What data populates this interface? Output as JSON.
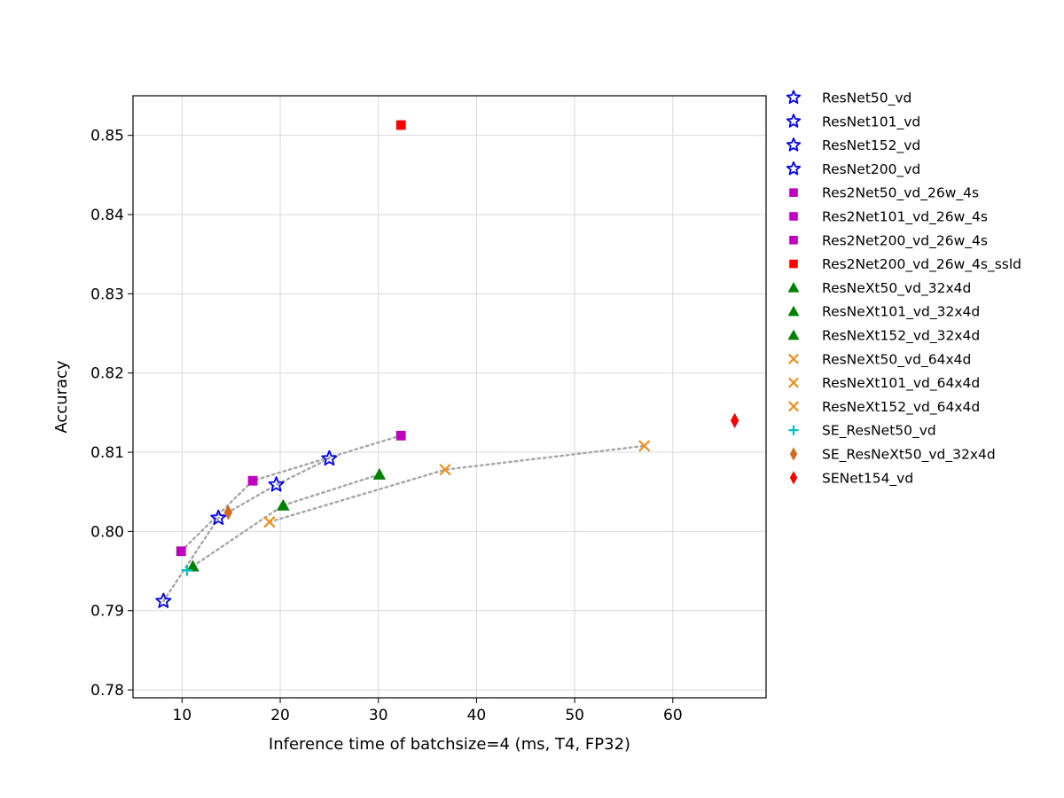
{
  "chart_data": {
    "type": "scatter",
    "xlabel": "Inference time of batchsize=4 (ms, T4, FP32)",
    "ylabel": "Accuracy",
    "xlim": [
      5,
      69.5
    ],
    "ylim": [
      0.779,
      0.855
    ],
    "xticks": [
      10,
      20,
      30,
      40,
      50,
      60
    ],
    "yticks": [
      0.78,
      0.79,
      0.8,
      0.81,
      0.82,
      0.83,
      0.84,
      0.85
    ],
    "grid": true,
    "legend_position": "outside-right",
    "series": [
      {
        "name": "ResNet50_vd",
        "marker": "star",
        "color": "#0000ff",
        "x": 25.0,
        "y": 0.8092
      },
      {
        "name": "ResNet101_vd",
        "marker": "star",
        "color": "#0000ff",
        "x": 19.6,
        "y": 0.8059
      },
      {
        "name": "ResNet152_vd",
        "marker": "star",
        "color": "#0000ff",
        "x": 13.7,
        "y": 0.8017
      },
      {
        "name": "ResNet200_vd",
        "marker": "star",
        "color": "#0000ff",
        "x": 8.1,
        "y": 0.7912
      },
      {
        "name": "Res2Net50_vd_26w_4s",
        "marker": "square",
        "color": "#bf00bf",
        "x": 9.9,
        "y": 0.7975
      },
      {
        "name": "Res2Net101_vd_26w_4s",
        "marker": "square",
        "color": "#bf00bf",
        "x": 17.2,
        "y": 0.8064
      },
      {
        "name": "Res2Net200_vd_26w_4s",
        "marker": "square",
        "color": "#bf00bf",
        "x": 32.3,
        "y": 0.8121
      },
      {
        "name": "Res2Net200_vd_26w_4s_ssld",
        "marker": "square",
        "color": "#ff0000",
        "x": 32.3,
        "y": 0.8513
      },
      {
        "name": "ResNeXt50_vd_32x4d",
        "marker": "triangle",
        "color": "#008000",
        "x": 11.1,
        "y": 0.7956
      },
      {
        "name": "ResNeXt101_vd_32x4d",
        "marker": "triangle",
        "color": "#008000",
        "x": 20.3,
        "y": 0.8033
      },
      {
        "name": "ResNeXt152_vd_32x4d",
        "marker": "triangle",
        "color": "#008000",
        "x": 30.1,
        "y": 0.8072
      },
      {
        "name": "ResNeXt50_vd_64x4d",
        "marker": "x",
        "color": "#f28e1c",
        "x": 18.9,
        "y": 0.8012
      },
      {
        "name": "ResNeXt101_vd_64x4d",
        "marker": "x",
        "color": "#f28e1c",
        "x": 36.8,
        "y": 0.8078
      },
      {
        "name": "ResNeXt152_vd_64x4d",
        "marker": "x",
        "color": "#f28e1c",
        "x": 57.1,
        "y": 0.8108
      },
      {
        "name": "SE_ResNet50_vd",
        "marker": "plus",
        "color": "#00bfbf",
        "x": 10.5,
        "y": 0.7951
      },
      {
        "name": "SE_ResNeXt50_vd_32x4d",
        "marker": "diamond",
        "color": "#d2691e",
        "x": 14.7,
        "y": 0.8024
      },
      {
        "name": "SENet154_vd",
        "marker": "diamond",
        "color": "#ff0000",
        "x": 66.3,
        "y": 0.814
      }
    ],
    "dotted_lines": [
      {
        "family": "ResNet_vd",
        "points": [
          [
            8.1,
            0.7912
          ],
          [
            13.7,
            0.8017
          ],
          [
            19.6,
            0.8059
          ],
          [
            25.0,
            0.8092
          ]
        ]
      },
      {
        "family": "Res2Net_vd_26w_4s",
        "points": [
          [
            9.9,
            0.7975
          ],
          [
            17.2,
            0.8064
          ],
          [
            32.3,
            0.8121
          ]
        ]
      },
      {
        "family": "ResNeXt_vd_32x4d",
        "points": [
          [
            11.1,
            0.7956
          ],
          [
            20.3,
            0.8033
          ],
          [
            30.1,
            0.8072
          ]
        ]
      },
      {
        "family": "ResNeXt_vd_64x4d",
        "points": [
          [
            18.9,
            0.8012
          ],
          [
            36.8,
            0.8078
          ],
          [
            57.1,
            0.8108
          ]
        ]
      }
    ]
  }
}
